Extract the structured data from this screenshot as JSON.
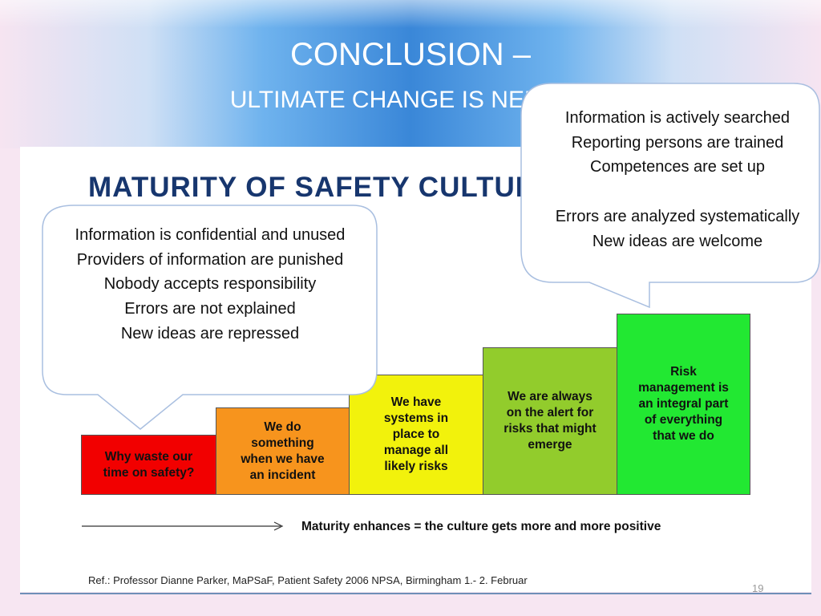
{
  "title": {
    "line1": "CONCLUSION –",
    "line2": "ULTIMATE CHANGE IS NEEDED"
  },
  "diagram": {
    "heading": "MATURITY OF SAFETY CULTURE",
    "steps": [
      {
        "text": "Why waste our\ntime on safety?",
        "color": "#f20000"
      },
      {
        "text": "We do\nsomething\nwhen we have\nan incident",
        "color": "#f7941d"
      },
      {
        "text": "We have\nsystems in\nplace to\nmanage all\nlikely risks",
        "color": "#f2f20c"
      },
      {
        "text": "We are always\non the alert for\nrisks that might\nemerge",
        "color": "#92cc2c"
      },
      {
        "text": "Risk\nmanagement is\nan integral part\nof everything\nthat we do",
        "color": "#22e832"
      }
    ],
    "arrow_caption": "Maturity enhances = the culture gets more and more positive",
    "reference": "Ref.: Professor Dianne Parker, MaPSaF, Patient Safety 2006 NPSA, Birmingham 1.- 2. Februar"
  },
  "bubble_left": {
    "lines": [
      "Information is confidential and unused",
      "Providers of information are punished",
      "Nobody accepts responsibility",
      "Errors are not explained",
      "New ideas are repressed"
    ]
  },
  "bubble_right": {
    "lines": [
      "Information is actively searched",
      "Reporting persons are trained",
      "Competences are set up",
      "",
      "Errors are analyzed systematically",
      "New ideas are welcome"
    ]
  },
  "page_number": "19"
}
